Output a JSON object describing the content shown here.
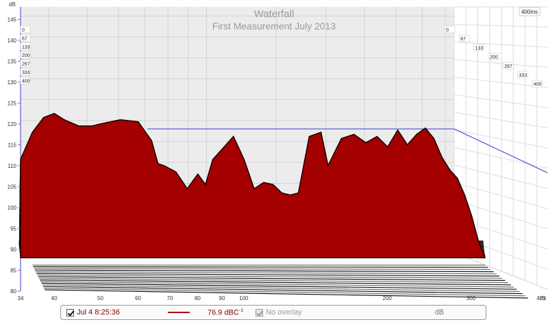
{
  "chart_data": {
    "type": "area",
    "title": "Waterfall",
    "subtitle": "First Measurement July  2013",
    "ylabel": "dB",
    "xunit": "Hz",
    "xscale": "log",
    "xlim": [
      34,
      421
    ],
    "ylim": [
      80,
      148
    ],
    "x_ticks": [
      "34",
      "40",
      "50",
      "60",
      "70",
      "80",
      "90",
      "100",
      "200",
      "300",
      "421"
    ],
    "x_tick_values": [
      34,
      40,
      50,
      60,
      70,
      80,
      90,
      100,
      200,
      300,
      421
    ],
    "y_ticks": [
      "80",
      "85",
      "90",
      "95",
      "100",
      "105",
      "110",
      "115",
      "120",
      "125",
      "130",
      "135",
      "140",
      "145"
    ],
    "y_tick_values": [
      80,
      85,
      90,
      95,
      100,
      105,
      110,
      115,
      120,
      125,
      130,
      135,
      140,
      145
    ],
    "time_axis_unit": "400ms",
    "time_labels": [
      "0",
      "67",
      "133",
      "200",
      "267",
      "333",
      "400"
    ],
    "time_values": [
      0,
      67,
      133,
      200,
      267,
      333,
      400
    ],
    "slice_count": 30,
    "front_slice": {
      "time_ms": 0,
      "x": [
        34,
        36,
        38,
        40,
        42,
        45,
        48,
        50,
        55,
        60,
        64,
        66,
        68,
        72,
        76,
        80,
        83,
        86,
        90,
        95,
        100,
        105,
        110,
        115,
        120,
        125,
        130,
        137,
        145,
        150,
        160,
        170,
        180,
        190,
        200,
        210,
        220,
        230,
        240,
        250,
        260,
        270,
        280,
        290,
        300,
        310,
        320
      ],
      "y": [
        111.5,
        118,
        121.5,
        122.5,
        121,
        119.5,
        119.5,
        120,
        121,
        120.5,
        116,
        110.5,
        110,
        108.5,
        104.5,
        108,
        105.5,
        111.5,
        114,
        117,
        111.5,
        104.5,
        106,
        105.5,
        103.5,
        103,
        103.5,
        117,
        118,
        110,
        116.5,
        117.5,
        115.5,
        117,
        114.5,
        118.5,
        115,
        117.5,
        119,
        116.5,
        112,
        109,
        107,
        103,
        98,
        92,
        88
      ]
    },
    "decay_floor": {
      "time_ms": [
        0,
        67,
        133,
        200,
        267,
        333,
        400
      ],
      "db": [
        85,
        86,
        87,
        88,
        89,
        90,
        91
      ]
    },
    "colors": {
      "fill": "#a50000",
      "outline": "#1a0000",
      "plot_bg": "#ececec",
      "grid": "#d3d3d3",
      "reference_line": "#3a3acd",
      "title": "#9a9a9a"
    },
    "grid": true
  },
  "status": {
    "measurement_label": "Jul 4 8:25:36",
    "trace_color": "#b00000",
    "level_value": "76.9 dBC",
    "level_superscript": "-1",
    "overlay_label": "No overlay",
    "unit_label": "dB"
  }
}
